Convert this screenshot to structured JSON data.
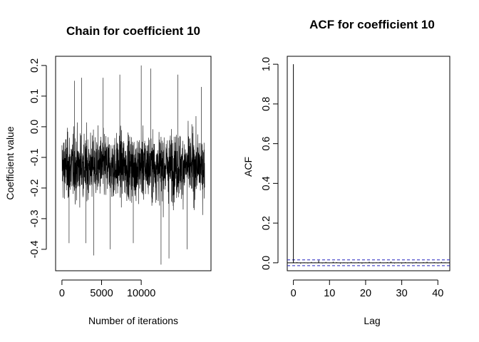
{
  "chart_data": [
    {
      "type": "line",
      "title": "Chain for coefficient 10",
      "xlabel": "Number of iterations",
      "ylabel": "Coefficient value",
      "xlim": [
        -800,
        18800
      ],
      "ylim": [
        -0.47,
        0.23
      ],
      "x_ticks": [
        0,
        5000,
        10000
      ],
      "y_ticks": [
        -0.4,
        -0.3,
        -0.2,
        -0.1,
        0.0,
        0.1,
        0.2
      ],
      "x_tick_labels": [
        "0",
        "5000",
        "10000"
      ],
      "y_tick_labels": [
        "-0.4",
        "-0.3",
        "-0.2",
        "-0.1",
        "0.0",
        "0.1",
        "0.2"
      ],
      "series": [
        {
          "x_start": 0,
          "x_end": 18000,
          "summary": {
            "mean": -0.13,
            "typical_low": -0.28,
            "typical_high": 0.03,
            "min": -0.45,
            "max": 0.2
          },
          "extremes": [
            {
              "x": 900,
              "y": -0.38
            },
            {
              "x": 1600,
              "y": 0.15
            },
            {
              "x": 2500,
              "y": 0.16
            },
            {
              "x": 3000,
              "y": -0.38
            },
            {
              "x": 4000,
              "y": -0.42
            },
            {
              "x": 5200,
              "y": 0.16
            },
            {
              "x": 6100,
              "y": -0.4
            },
            {
              "x": 7300,
              "y": 0.17
            },
            {
              "x": 9000,
              "y": -0.38
            },
            {
              "x": 10000,
              "y": 0.2
            },
            {
              "x": 11200,
              "y": 0.19
            },
            {
              "x": 12500,
              "y": -0.45
            },
            {
              "x": 13500,
              "y": -0.43
            },
            {
              "x": 14600,
              "y": 0.17
            },
            {
              "x": 15800,
              "y": -0.4
            },
            {
              "x": 17600,
              "y": 0.13
            }
          ]
        }
      ],
      "colors": {
        "line": "#000000"
      }
    },
    {
      "type": "bar",
      "title": "ACF for coefficient 10",
      "xlabel": "Lag",
      "ylabel": "ACF",
      "xlim": [
        -1.7,
        43.3
      ],
      "ylim": [
        -0.04,
        1.04
      ],
      "x_ticks": [
        0,
        10,
        20,
        30,
        40
      ],
      "y_ticks": [
        0.0,
        0.2,
        0.4,
        0.6,
        0.8,
        1.0
      ],
      "x_tick_labels": [
        "0",
        "10",
        "20",
        "30",
        "40"
      ],
      "y_tick_labels": [
        "0.0",
        "0.2",
        "0.4",
        "0.6",
        "0.8",
        "1.0"
      ],
      "lags": [
        0,
        1,
        2,
        3,
        4,
        5,
        6,
        7,
        8,
        9,
        10,
        11,
        12,
        13,
        14,
        15,
        16,
        17,
        18,
        19,
        20,
        21,
        22,
        23,
        24,
        25,
        26,
        27,
        28,
        29,
        30,
        31,
        32,
        33,
        34,
        35,
        36,
        37,
        38,
        39,
        40,
        41,
        42
      ],
      "values": [
        1.0,
        0.003,
        -0.004,
        0.002,
        -0.003,
        0.004,
        0.002,
        0.012,
        -0.003,
        0.004,
        -0.002,
        0.005,
        0.003,
        -0.004,
        0.002,
        -0.003,
        0.004,
        -0.002,
        0.003,
        -0.004,
        0.002,
        0.005,
        -0.003,
        0.002,
        0.004,
        -0.002,
        0.003,
        0.006,
        -0.003,
        0.002,
        -0.004,
        0.003,
        0.002,
        -0.003,
        0.004,
        -0.002,
        0.003,
        0.005,
        -0.002,
        0.003,
        -0.003,
        0.004,
        0.002
      ],
      "conf_limit": 0.0146,
      "colors": {
        "bars": "#000000",
        "conf_lines": "#2020c0",
        "zero_line": "#000000"
      }
    }
  ]
}
